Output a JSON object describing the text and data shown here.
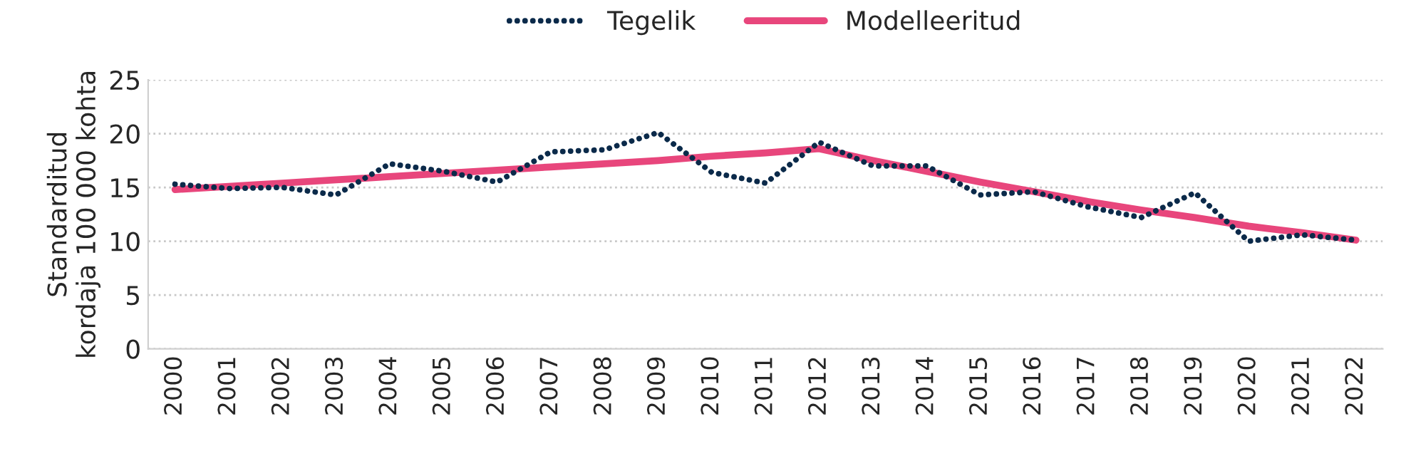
{
  "chart_data": {
    "type": "line",
    "ylabel": "Standarditud\nkordaja 100 000 kohta",
    "categories": [
      "2000",
      "2001",
      "2002",
      "2003",
      "2004",
      "2005",
      "2006",
      "2007",
      "2008",
      "2009",
      "2010",
      "2011",
      "2012",
      "2013",
      "2014",
      "2015",
      "2016",
      "2017",
      "2018",
      "2019",
      "2020",
      "2021",
      "2022"
    ],
    "series": [
      {
        "name": "Tegelik",
        "color": "#0b2a4a",
        "line_style": "dotted",
        "values": [
          15.3,
          14.9,
          15.0,
          14.3,
          17.2,
          16.5,
          15.5,
          18.3,
          18.5,
          20.1,
          16.4,
          15.4,
          19.2,
          17.0,
          17.0,
          14.3,
          14.6,
          13.2,
          12.2,
          14.5,
          10.0,
          10.6,
          10.1
        ]
      },
      {
        "name": "Modelleeritud",
        "color": "#e8467c",
        "line_style": "solid",
        "values": [
          14.8,
          15.1,
          15.4,
          15.7,
          16.0,
          16.3,
          16.6,
          16.9,
          17.2,
          17.5,
          17.9,
          18.2,
          18.6,
          17.5,
          16.5,
          15.5,
          14.6,
          13.7,
          12.9,
          12.2,
          11.4,
          10.8,
          10.1
        ]
      }
    ],
    "ylim": [
      0,
      25
    ],
    "yticks": [
      0,
      5,
      10,
      15,
      20,
      25
    ],
    "grid": "y",
    "legend": "top",
    "marker": "none"
  }
}
